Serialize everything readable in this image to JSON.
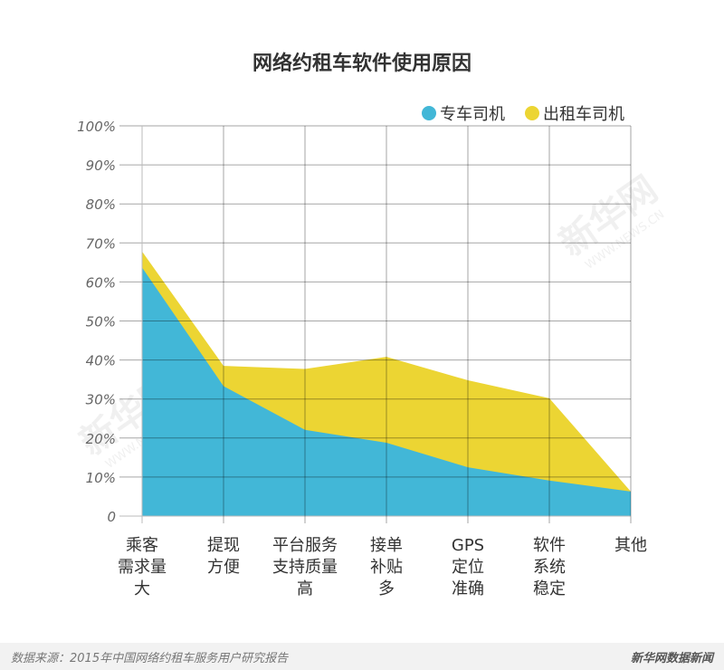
{
  "chart_data": {
    "type": "area",
    "title": "网络约租车软件使用原因",
    "categories": [
      [
        "乘客",
        "需求量",
        "大"
      ],
      [
        "提现",
        "方便"
      ],
      [
        "平台服务",
        "支持质量",
        "高"
      ],
      [
        "接单",
        "补贴",
        "多"
      ],
      [
        "GPS",
        "定位",
        "准确"
      ],
      [
        "软件",
        "系统",
        "稳定"
      ],
      [
        "其他"
      ]
    ],
    "series": [
      {
        "name": "出租车司机",
        "color": "#ecd533",
        "values": [
          67.8,
          38.5,
          37.7,
          40.8,
          34.8,
          30.2,
          6.3
        ]
      },
      {
        "name": "专车司机",
        "color": "#42b7d7",
        "values": [
          63.7,
          33.3,
          22.1,
          18.8,
          12.5,
          9.1,
          6.3
        ]
      }
    ],
    "legend": [
      {
        "name": "专车司机",
        "color": "#42b7d7"
      },
      {
        "name": "出租车司机",
        "color": "#ecd533"
      }
    ],
    "legend_position": "top-right",
    "yticks": [
      "0",
      "10%",
      "20%",
      "30%",
      "40%",
      "50%",
      "60%",
      "70%",
      "80%",
      "90%",
      "100%"
    ],
    "ylim": [
      0,
      100
    ],
    "grid": true
  },
  "watermark": {
    "text": "新华网",
    "sub": "WWW.NEWS.CN"
  },
  "footer": {
    "source": "数据来源：2015年中国网络约租车服务用户研究报告",
    "brand": "新华网数据新闻"
  }
}
